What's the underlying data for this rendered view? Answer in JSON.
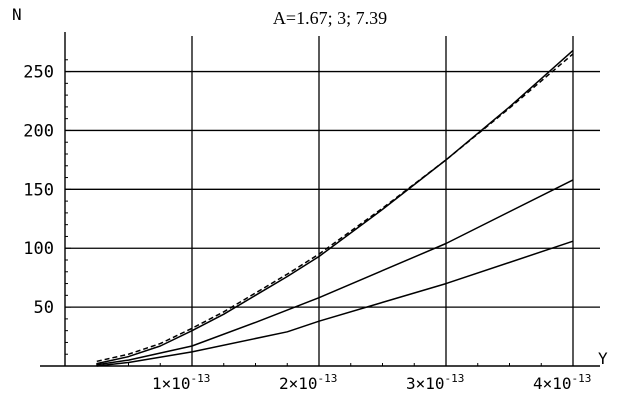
{
  "chart_data": {
    "type": "line",
    "title": "A=1.67; 3; 7.39",
    "ylabel": "N",
    "xlabel": "Y",
    "xlim": [
      0,
      4e-13
    ],
    "ylim": [
      0,
      270
    ],
    "grid": true,
    "x_ticks": [
      {
        "value": 1e-13,
        "mantissa": "1×10",
        "exp": "-13"
      },
      {
        "value": 2e-13,
        "mantissa": "2×10",
        "exp": "-13"
      },
      {
        "value": 3e-13,
        "mantissa": "3×10",
        "exp": "-13"
      },
      {
        "value": 4e-13,
        "mantissa": "4×10",
        "exp": "-13"
      }
    ],
    "y_ticks": [
      {
        "value": 50,
        "label": "50"
      },
      {
        "value": 100,
        "label": "100"
      },
      {
        "value": 150,
        "label": "150"
      },
      {
        "value": 200,
        "label": "200"
      },
      {
        "value": 250,
        "label": "250"
      }
    ],
    "series": [
      {
        "style": "solid",
        "color": "#000000",
        "x": [
          2.5e-14,
          5e-14,
          7.5e-14,
          1e-13,
          1.25e-13,
          1.5e-13,
          1.75e-13,
          2e-13,
          2.5e-13,
          3e-13,
          3.5e-13,
          4e-13
        ],
        "y": [
          2,
          8,
          17,
          30,
          44,
          60,
          76,
          93,
          133,
          175,
          220,
          268
        ]
      },
      {
        "style": "dashed",
        "color": "#000000",
        "x": [
          2.5e-14,
          5e-14,
          7.5e-14,
          1e-13,
          1.25e-13,
          1.5e-13,
          1.75e-13,
          2e-13,
          2.5e-13,
          3e-13,
          3.5e-13,
          4e-13
        ],
        "y": [
          4,
          10,
          19,
          32,
          46,
          62,
          78,
          95,
          134,
          175,
          219,
          265
        ]
      },
      {
        "style": "solid",
        "color": "#000000",
        "x": [
          2.5e-14,
          5e-14,
          1e-13,
          1.5e-13,
          2e-13,
          3e-13,
          4e-13
        ],
        "y": [
          1,
          5,
          17,
          37,
          58,
          104,
          158
        ]
      },
      {
        "style": "solid",
        "color": "#000000",
        "x": [
          2.5e-14,
          5e-14,
          1e-13,
          1.75e-13,
          2e-13,
          3e-13,
          4e-13
        ],
        "y": [
          0,
          3,
          12,
          29,
          38,
          70,
          106
        ]
      }
    ]
  }
}
